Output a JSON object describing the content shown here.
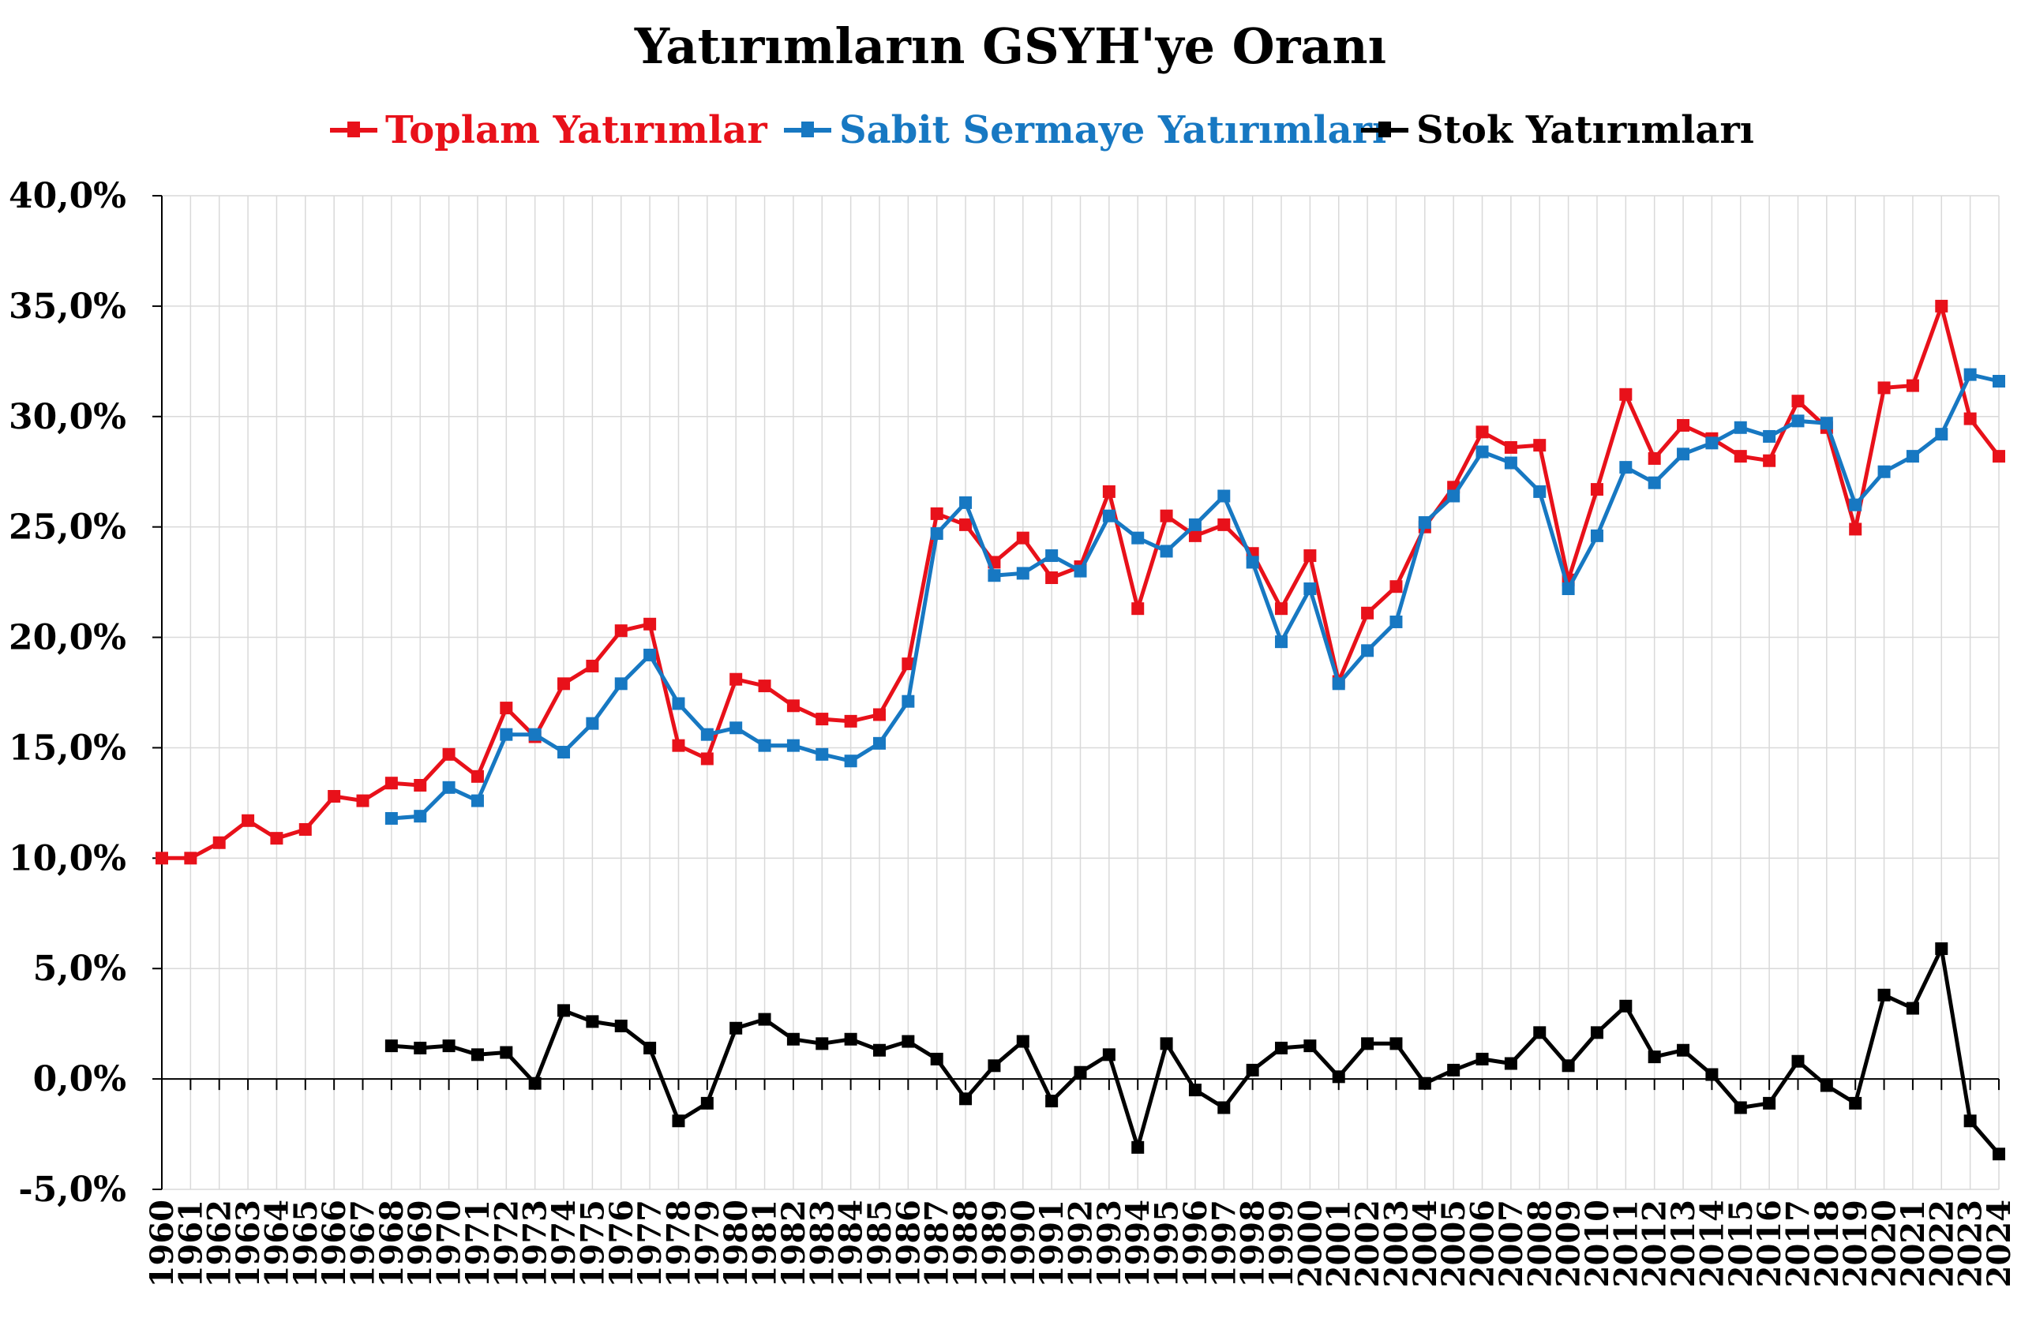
{
  "chart_data": {
    "type": "line",
    "title": "Yatırımların GSYH'ye Oranı",
    "xlabel": "",
    "ylabel": "",
    "ylim": [
      -5,
      40
    ],
    "yticks": [
      "-5,0%",
      "0,0%",
      "5,0%",
      "10,0%",
      "15,0%",
      "20,0%",
      "25,0%",
      "30,0%",
      "35,0%",
      "40,0%"
    ],
    "ytick_values": [
      -5,
      0,
      5,
      10,
      15,
      20,
      25,
      30,
      35,
      40
    ],
    "grid": true,
    "legend_position": "top-center",
    "x": [
      "1960",
      "1961",
      "1962",
      "1963",
      "1964",
      "1965",
      "1966",
      "1967",
      "1968",
      "1969",
      "1970",
      "1971",
      "1972",
      "1973",
      "1974",
      "1975",
      "1976",
      "1977",
      "1978",
      "1979",
      "1980",
      "1981",
      "1982",
      "1983",
      "1984",
      "1985",
      "1986",
      "1987",
      "1988",
      "1989",
      "1990",
      "1991",
      "1992",
      "1993",
      "1994",
      "1995",
      "1996",
      "1997",
      "1998",
      "1999",
      "2000",
      "2001",
      "2002",
      "2003",
      "2004",
      "2005",
      "2006",
      "2007",
      "2008",
      "2009",
      "2010",
      "2011",
      "2012",
      "2013",
      "2014",
      "2015",
      "2016",
      "2017",
      "2018",
      "2019",
      "2020",
      "2021",
      "2022",
      "2023",
      "2024"
    ],
    "series": [
      {
        "name": "Toplam Yatırımlar",
        "color": "#e8111a",
        "values": [
          10.0,
          10.0,
          10.7,
          11.7,
          10.9,
          11.3,
          12.8,
          12.6,
          13.4,
          13.3,
          14.7,
          13.7,
          16.8,
          15.5,
          17.9,
          18.7,
          20.3,
          20.6,
          15.1,
          14.5,
          18.1,
          17.8,
          16.9,
          16.3,
          16.2,
          16.5,
          18.8,
          25.6,
          25.1,
          23.4,
          24.5,
          22.7,
          23.2,
          26.6,
          21.3,
          25.5,
          24.6,
          25.1,
          23.8,
          21.3,
          23.7,
          18.0,
          21.1,
          22.3,
          25.0,
          26.8,
          29.3,
          28.6,
          28.7,
          22.6,
          26.7,
          31.0,
          28.1,
          29.6,
          29.0,
          28.2,
          28.0,
          30.7,
          29.5,
          24.9,
          31.3,
          31.4,
          35.0,
          29.9,
          28.2
        ]
      },
      {
        "name": "Sabit Sermaye Yatırımları",
        "color": "#1778c2",
        "values": [
          null,
          null,
          null,
          null,
          null,
          null,
          null,
          null,
          11.8,
          11.9,
          13.2,
          12.6,
          15.6,
          15.6,
          14.8,
          16.1,
          17.9,
          19.2,
          17.0,
          15.6,
          15.9,
          15.1,
          15.1,
          14.7,
          14.4,
          15.2,
          17.1,
          24.7,
          26.1,
          22.8,
          22.9,
          23.7,
          23.0,
          25.5,
          24.5,
          23.9,
          25.1,
          26.4,
          23.4,
          19.8,
          22.2,
          17.9,
          19.4,
          20.7,
          25.2,
          26.4,
          28.4,
          27.9,
          26.6,
          22.2,
          24.6,
          27.7,
          27.0,
          28.3,
          28.8,
          29.5,
          29.1,
          29.8,
          29.7,
          26.0,
          27.5,
          28.2,
          29.2,
          31.9,
          31.6
        ]
      },
      {
        "name": "Stok Yatırımları",
        "color": "#000000",
        "values": [
          null,
          null,
          null,
          null,
          null,
          null,
          null,
          null,
          1.5,
          1.4,
          1.5,
          1.1,
          1.2,
          -0.2,
          3.1,
          2.6,
          2.4,
          1.4,
          -1.9,
          -1.1,
          2.3,
          2.7,
          1.8,
          1.6,
          1.8,
          1.3,
          1.7,
          0.9,
          -0.9,
          0.6,
          1.7,
          -1.0,
          0.3,
          1.1,
          -3.1,
          1.6,
          -0.5,
          -1.3,
          0.4,
          1.4,
          1.5,
          0.1,
          1.6,
          1.6,
          -0.2,
          0.4,
          0.9,
          0.7,
          2.1,
          0.6,
          2.1,
          3.3,
          1.0,
          1.3,
          0.2,
          -1.3,
          -1.1,
          0.8,
          -0.3,
          -1.1,
          3.8,
          3.2,
          5.9,
          -1.9,
          -3.4
        ]
      }
    ]
  }
}
